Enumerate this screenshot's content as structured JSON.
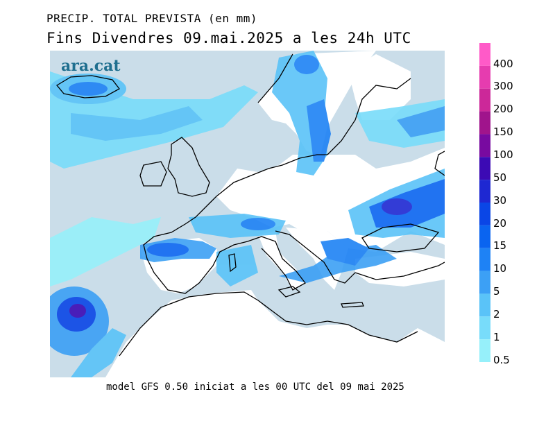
{
  "header": {
    "title": "PRECIP. TOTAL PREVISTA (en mm)",
    "subtitle": "Fins Divendres 09.mai.2025 a les 24h UTC"
  },
  "footer": {
    "model_text": "model GFS 0.50 iniciat a les 00 UTC del 09 mai 2025"
  },
  "watermark": {
    "text": "ara.cat"
  },
  "colors": {
    "sea_no_precip": "#cadde9",
    "land_no_precip": "#ffffff",
    "coastline": "#000000"
  },
  "legend": {
    "bins": [
      {
        "label": "400",
        "color": "#ff5ac8"
      },
      {
        "label": "300",
        "color": "#e63caf"
      },
      {
        "label": "200",
        "color": "#cc2899"
      },
      {
        "label": "150",
        "color": "#a0148c"
      },
      {
        "label": "100",
        "color": "#780aa0"
      },
      {
        "label": "50",
        "color": "#3c0ab4"
      },
      {
        "label": "30",
        "color": "#1e28d2"
      },
      {
        "label": "20",
        "color": "#0a46e6"
      },
      {
        "label": "15",
        "color": "#0a64f0"
      },
      {
        "label": "10",
        "color": "#1e82f5"
      },
      {
        "label": "5",
        "color": "#3ca0f5"
      },
      {
        "label": "2",
        "color": "#5ac3f8"
      },
      {
        "label": "1",
        "color": "#78dcfa"
      },
      {
        "label": "0.5",
        "color": "#96f0fa"
      }
    ]
  }
}
